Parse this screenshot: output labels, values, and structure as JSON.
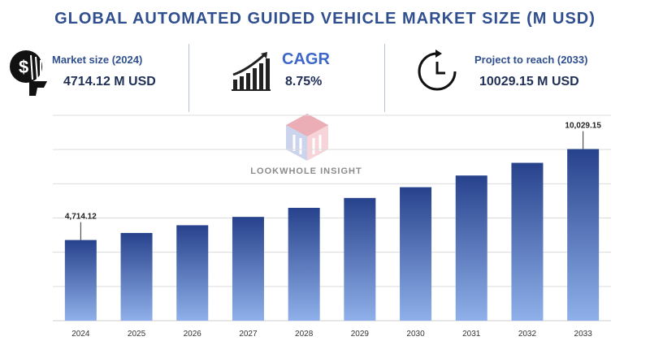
{
  "title": "GLOBAL AUTOMATED GUIDED VEHICLE MARKET SIZE (M USD)",
  "kpis": {
    "market_size": {
      "label": "Market size (2024)",
      "value": "4714.12 M USD",
      "icon": "money-hand-icon"
    },
    "cagr": {
      "label": "CAGR",
      "value": "8.75%",
      "icon": "growth-chart-icon"
    },
    "projection": {
      "label": "Project to reach (2033)",
      "value": "10029.15 M USD",
      "icon": "clock-arrow-icon"
    }
  },
  "watermark": {
    "text": "LOOKWHOLE INSIGHT",
    "icon": "lookwhole-logo-icon"
  },
  "colors": {
    "title": "#2f4f8f",
    "bar_top": "#27428c",
    "bar_bottom": "#8fb0ea",
    "grid": "#dcdcdc"
  },
  "chart_data": {
    "type": "bar",
    "categories": [
      "2024",
      "2025",
      "2026",
      "2027",
      "2028",
      "2029",
      "2030",
      "2031",
      "2032",
      "2033"
    ],
    "values": [
      4714.12,
      5126,
      5576,
      6063,
      6594,
      7171,
      7799,
      8481,
      9223,
      10029.15
    ],
    "data_labels": {
      "2024": "4,714.12",
      "2033": "10,029.15"
    },
    "ylim": [
      0,
      12000
    ],
    "grid": true,
    "legend": "none"
  }
}
